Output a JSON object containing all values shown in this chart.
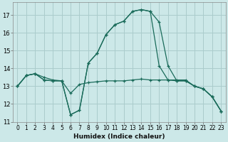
{
  "title": "",
  "xlabel": "Humidex (Indice chaleur)",
  "background_color": "#cce8e8",
  "grid_color": "#aacccc",
  "line_color": "#1a6b5a",
  "xlim": [
    -0.5,
    23.5
  ],
  "ylim": [
    11.0,
    17.7
  ],
  "xticks": [
    0,
    1,
    2,
    3,
    4,
    5,
    6,
    7,
    8,
    9,
    10,
    11,
    12,
    13,
    14,
    15,
    16,
    17,
    18,
    19,
    20,
    21,
    22,
    23
  ],
  "yticks": [
    11,
    12,
    13,
    14,
    15,
    16,
    17
  ],
  "series": [
    {
      "x": [
        0,
        1,
        2,
        3,
        4,
        5,
        6,
        7,
        8,
        9,
        10,
        11,
        12,
        13,
        14,
        15,
        16,
        17,
        18,
        19,
        20,
        21,
        22,
        23
      ],
      "y": [
        13.0,
        13.6,
        13.7,
        13.35,
        13.3,
        13.3,
        11.4,
        11.65,
        14.3,
        14.85,
        15.9,
        16.45,
        16.65,
        17.2,
        17.3,
        17.2,
        16.6,
        14.15,
        13.3,
        13.3,
        13.0,
        12.85,
        12.4,
        11.6
      ]
    },
    {
      "x": [
        0,
        1,
        2,
        3,
        4,
        5,
        6,
        7,
        8,
        9,
        10,
        11,
        12,
        13,
        14,
        15,
        16,
        17,
        18,
        19,
        20,
        21,
        22,
        23
      ],
      "y": [
        13.0,
        13.6,
        13.7,
        13.5,
        13.35,
        13.3,
        12.6,
        13.1,
        13.2,
        13.25,
        13.3,
        13.3,
        13.3,
        13.35,
        13.4,
        13.35,
        13.35,
        13.35,
        13.3,
        13.3,
        13.0,
        12.85,
        12.4,
        11.6
      ]
    },
    {
      "x": [
        0,
        1,
        2,
        3,
        4,
        5,
        6,
        7,
        8,
        9,
        10,
        11,
        12,
        13,
        14,
        15,
        16,
        17,
        18,
        19,
        20,
        21,
        22,
        23
      ],
      "y": [
        13.0,
        13.6,
        13.7,
        13.35,
        13.3,
        13.3,
        11.4,
        11.65,
        14.3,
        14.85,
        15.9,
        16.45,
        16.65,
        17.2,
        17.3,
        17.2,
        14.15,
        13.35,
        13.35,
        13.35,
        13.0,
        12.85,
        12.4,
        11.6
      ]
    }
  ]
}
